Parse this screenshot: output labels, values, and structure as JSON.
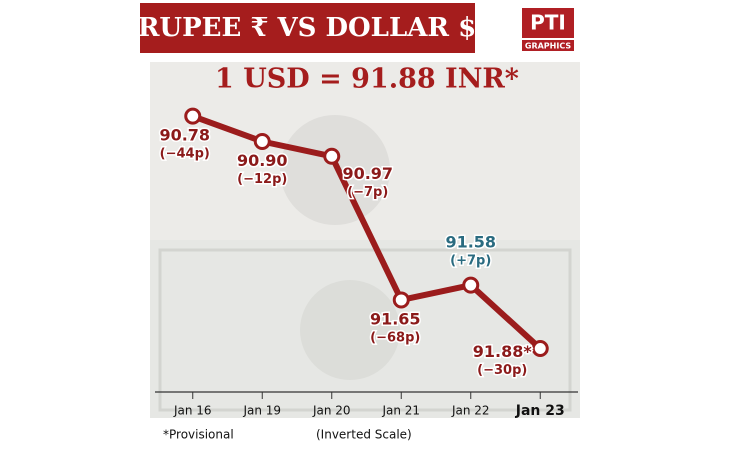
{
  "chart_data": {
    "type": "line",
    "title": "RUPEE ₹   VS   DOLLAR $",
    "headline": "1 USD = 91.88 INR*",
    "logo": "PTI",
    "logo_sub": "GRAPHICS",
    "footnote": "*Provisional",
    "scale_note": "(Inverted Scale)",
    "categories": [
      "Jan 16",
      "Jan 19",
      "Jan 20",
      "Jan 21",
      "Jan 22",
      "Jan 23"
    ],
    "values": [
      90.78,
      90.9,
      90.97,
      91.65,
      91.58,
      91.88
    ],
    "value_labels": [
      "90.78",
      "90.90",
      "90.97",
      "91.65",
      "91.58",
      "91.88*"
    ],
    "change_labels": [
      "(−44p)",
      "(−12p)",
      "(−7p)",
      "(−68p)",
      "(+7p)",
      "(−30p)"
    ],
    "label_colors": [
      "#8b1a1a",
      "#8b1a1a",
      "#8b1a1a",
      "#8b1a1a",
      "#2a6b80",
      "#8b1a1a"
    ],
    "color": "#9b1c1c",
    "ylim": [
      90.5,
      92.1
    ],
    "inverted": true
  }
}
